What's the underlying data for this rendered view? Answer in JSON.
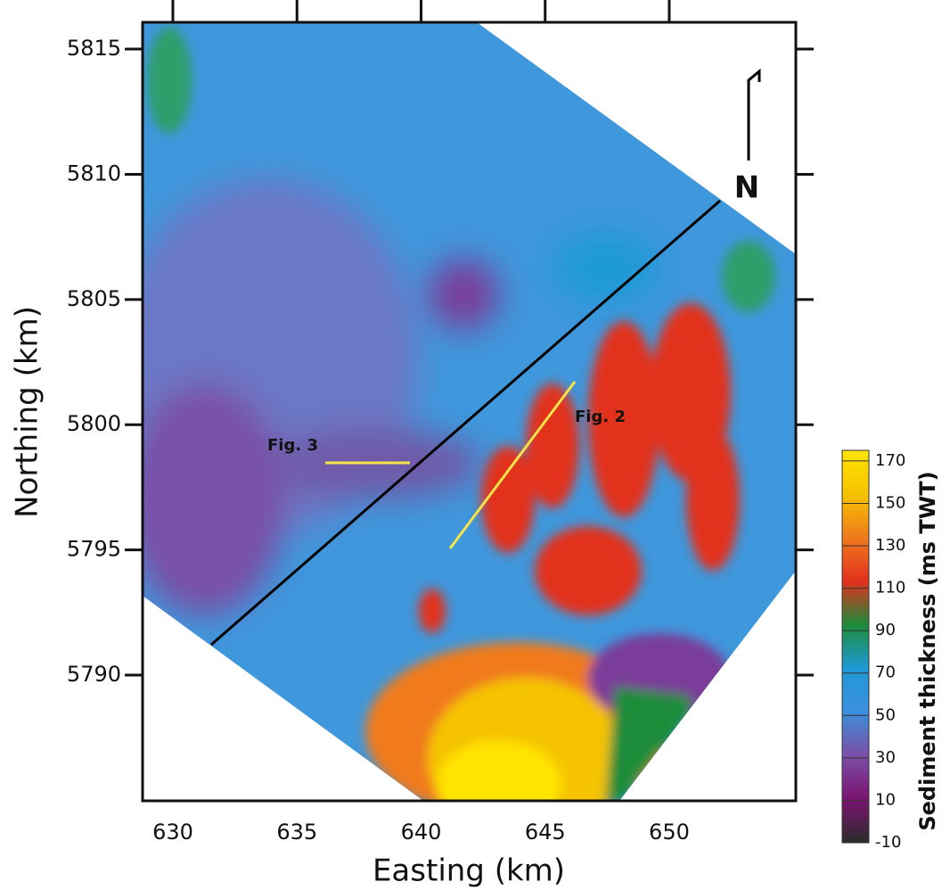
{
  "chart_data": {
    "type": "map",
    "xlabel": "Easting (km)",
    "ylabel": "Northing (km)",
    "xlim": [
      628.78,
      655.1
    ],
    "ylim": [
      5784.98,
      5816.07
    ],
    "xticks": [
      630,
      635,
      640,
      645,
      650
    ],
    "yticks": [
      5790,
      5795,
      5800,
      5805,
      5810,
      5815
    ],
    "annotations": [
      "Fig. 3",
      "Fig. 2",
      "N"
    ],
    "colorbar": {
      "label": "Sediment thickness (ms TWT)",
      "clim": [
        -10,
        175
      ],
      "ticks": [
        -10,
        10,
        30,
        50,
        70,
        90,
        110,
        130,
        150,
        170
      ],
      "colors": [
        "#2b2b2b",
        "#7a1470",
        "#7b4fa8",
        "#3c8fdc",
        "#1f9ad6",
        "#1e8c3a",
        "#e2311d",
        "#f07a1c",
        "#f5c300",
        "#ffe400"
      ]
    }
  }
}
